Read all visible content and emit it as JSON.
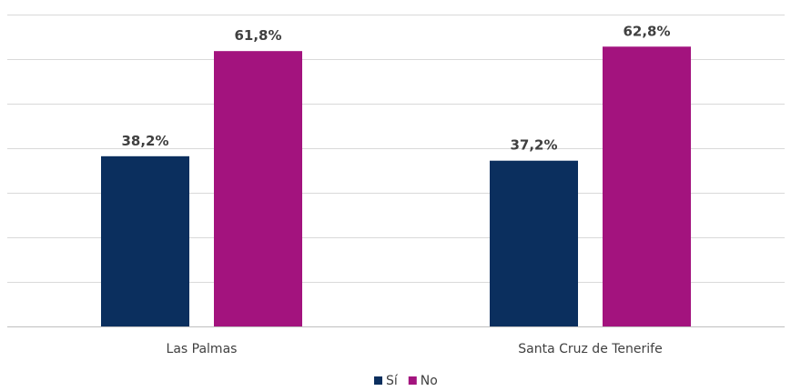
{
  "chart_data": {
    "type": "bar",
    "categories": [
      "Las Palmas",
      "Santa Cruz de Tenerife"
    ],
    "series": [
      {
        "name": "Sí",
        "values": [
          38.2,
          37.2
        ],
        "labels": [
          "38,2%",
          "37,2%"
        ],
        "color": "#0b2f5e"
      },
      {
        "name": "No",
        "values": [
          61.8,
          62.8
        ],
        "labels": [
          "61,8%",
          "62,8%"
        ],
        "color": "#a3137e"
      }
    ],
    "ylim": [
      0,
      70
    ],
    "grid": true,
    "legend_position": "bottom"
  }
}
